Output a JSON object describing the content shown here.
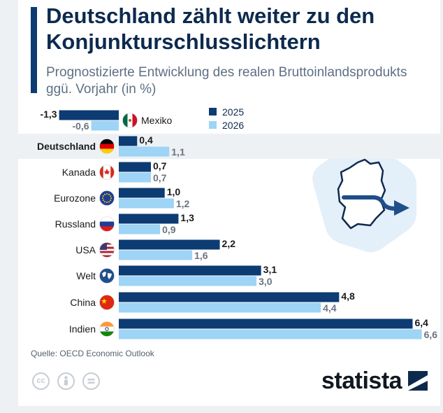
{
  "title": "Deutschland zählt weiter zu den Konjunkturschlusslichtern",
  "subtitle": "Prognostizierte Entwicklung des realen Bruttoinlandsprodukts ggü. Vorjahr (in %)",
  "source": "Quelle: OECD Economic Outlook",
  "brand": "statista",
  "colors": {
    "series_2025": "#0d3b73",
    "series_2026": "#9ed4f5",
    "highlight_row": "#eef1f4",
    "title": "#0d2a4e"
  },
  "icons": [
    "mexico-flag-icon",
    "germany-flag-icon",
    "canada-flag-icon",
    "eu-flag-icon",
    "russia-flag-icon",
    "usa-flag-icon",
    "world-globe-icon",
    "china-flag-icon",
    "india-flag-icon",
    "germany-map-icon",
    "arrow-right-icon",
    "cc-license-icon",
    "attribution-icon",
    "no-derivatives-icon",
    "statista-logo-icon"
  ],
  "chart_data": {
    "type": "bar",
    "orientation": "horizontal",
    "categories": [
      "Mexiko",
      "Deutschland",
      "Kanada",
      "Eurozone",
      "Russland",
      "USA",
      "Welt",
      "China",
      "Indien"
    ],
    "highlight": "Deutschland",
    "series": [
      {
        "name": "2025",
        "values": [
          -1.3,
          0.4,
          0.7,
          1.0,
          1.3,
          2.2,
          3.1,
          4.8,
          6.4
        ]
      },
      {
        "name": "2026",
        "values": [
          -0.6,
          1.1,
          0.7,
          1.2,
          0.9,
          1.6,
          3.0,
          4.4,
          6.6
        ]
      }
    ],
    "value_labels": [
      [
        "-1,3",
        "0,4",
        "0,7",
        "1,0",
        "1,3",
        "2,2",
        "3,1",
        "4,8",
        "6,4"
      ],
      [
        "-0,6",
        "1,1",
        "0,7",
        "1,2",
        "0,9",
        "1,6",
        "3,0",
        "4,4",
        "6,6"
      ]
    ],
    "legend": [
      "2025",
      "2026"
    ],
    "legend_position": "top-right",
    "grid": false,
    "unit": "%"
  }
}
